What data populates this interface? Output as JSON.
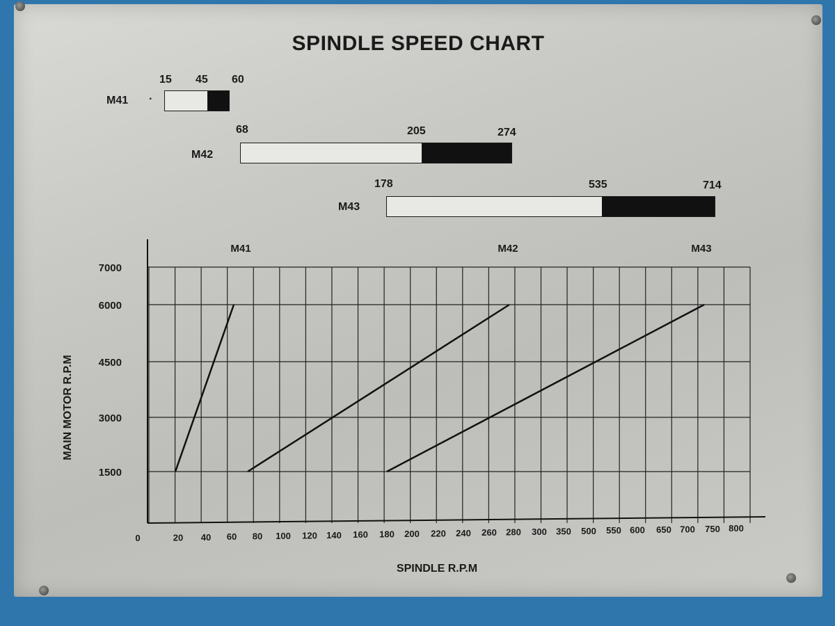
{
  "plate_title": "SPINDLE SPEED CHART",
  "ranges": [
    {
      "name": "M41",
      "low": "15",
      "mid": "45",
      "high": "60",
      "dot": "·"
    },
    {
      "name": "M42",
      "low": "68",
      "mid": "205",
      "high": "274"
    },
    {
      "name": "M43",
      "low": "178",
      "mid": "535",
      "high": "714"
    }
  ],
  "chart_data": {
    "type": "line",
    "title": "SPINDLE SPEED CHART",
    "xlabel": "SPINDLE R.P.M",
    "ylabel": "MAIN MOTOR R.P.M",
    "x_ticks": [
      "0",
      "20",
      "40",
      "60",
      "80",
      "100",
      "120",
      "140",
      "160",
      "180",
      "200",
      "220",
      "240",
      "260",
      "280",
      "300",
      "350",
      "500",
      "550",
      "600",
      "650",
      "700",
      "750",
      "800"
    ],
    "y_ticks": [
      "1500",
      "3000",
      "4500",
      "6000",
      "7000"
    ],
    "series": [
      {
        "name": "M41",
        "points": [
          [
            15,
            1500
          ],
          [
            60,
            6000
          ]
        ]
      },
      {
        "name": "M42",
        "points": [
          [
            68,
            1500
          ],
          [
            274,
            6000
          ]
        ]
      },
      {
        "name": "M43",
        "points": [
          [
            178,
            1500
          ],
          [
            714,
            6000
          ]
        ]
      }
    ],
    "grid": true
  }
}
